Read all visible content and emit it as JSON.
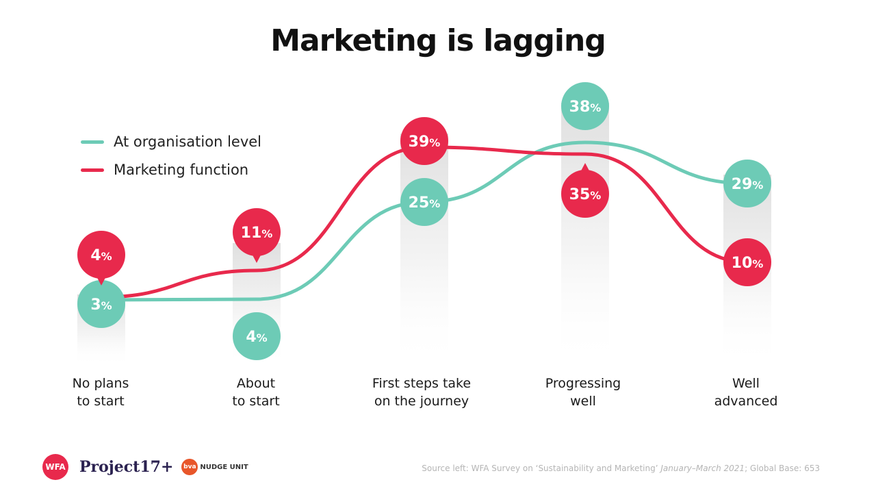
{
  "title": "Marketing is lagging",
  "chart_data": {
    "type": "line",
    "title": "Marketing is lagging",
    "categories": [
      "No plans to start",
      "About to start",
      "First steps take on the journey",
      "Progressing well",
      "Well advanced"
    ],
    "category_lines": [
      [
        "No plans",
        "to start"
      ],
      [
        "About",
        "to start"
      ],
      [
        "First steps take",
        "on the journey"
      ],
      [
        "Progressing",
        "well"
      ],
      [
        "Well",
        "advanced"
      ]
    ],
    "series": [
      {
        "name": "At organisation level",
        "color": "#6dcbb6",
        "values": [
          3,
          4,
          25,
          38,
          29
        ],
        "labels": [
          "3%",
          "4%",
          "25%",
          "38%",
          "29%"
        ]
      },
      {
        "name": "Marketing function",
        "color": "#e8294c",
        "values": [
          4,
          11,
          39,
          35,
          10
        ],
        "labels": [
          "4%",
          "11%",
          "39%",
          "35%",
          "10%"
        ]
      }
    ],
    "legend": "top-left",
    "grid": false
  },
  "source": {
    "prefix": "Source left: WFA Survey on ‘Sustainability and Marketing’",
    "period": "January–March 2021",
    "suffix": "; Global Base: 653"
  },
  "logos": {
    "wfa": "WFA",
    "project17": "Project17+",
    "bva_badge": "bva",
    "bva_text": "NUDGE UNIT"
  }
}
